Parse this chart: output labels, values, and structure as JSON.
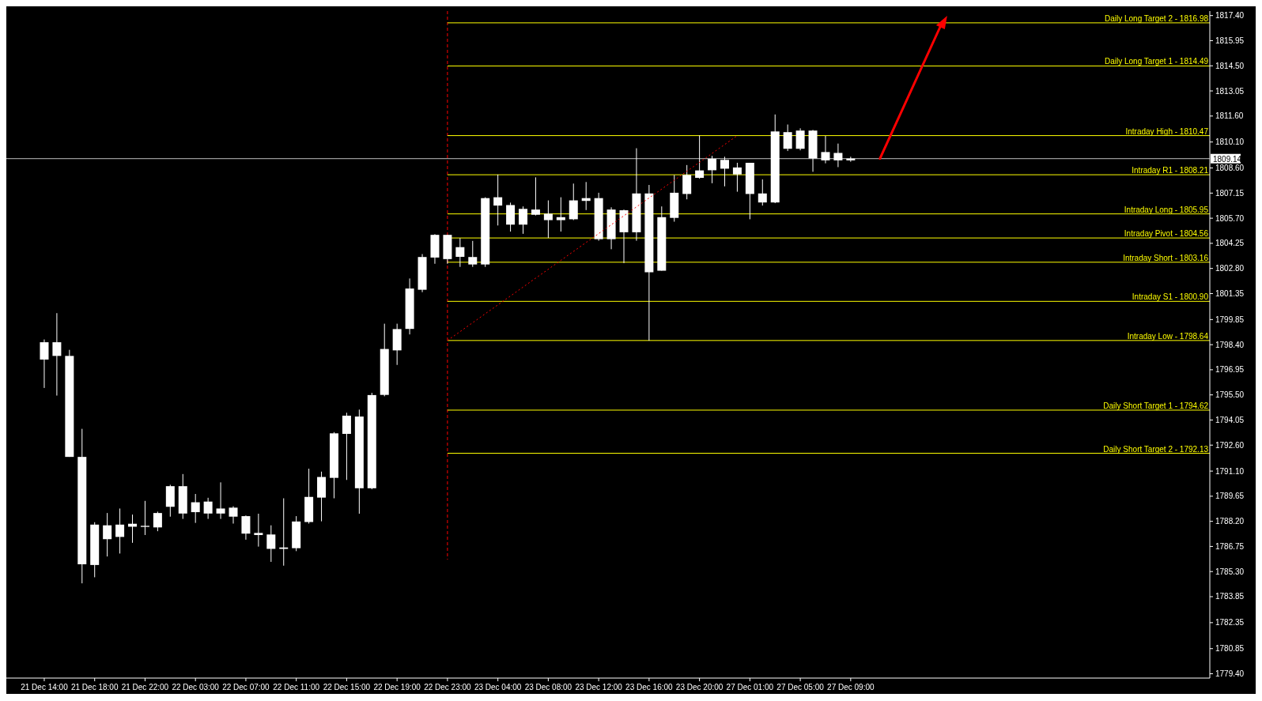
{
  "chart_data": {
    "type": "candlestick",
    "color": "#ffffff",
    "grid": false,
    "categories": [
      "21 Dec 14:00",
      null,
      null,
      null,
      "21 Dec 18:00",
      null,
      null,
      null,
      "21 Dec 22:00",
      null,
      null,
      null,
      "22 Dec 03:00",
      null,
      null,
      null,
      "22 Dec 07:00",
      null,
      null,
      null,
      "22 Dec 11:00",
      null,
      null,
      null,
      "22 Dec 15:00",
      null,
      null,
      null,
      "22 Dec 19:00",
      null,
      null,
      null,
      "22 Dec 23:00",
      null,
      null,
      null,
      "23 Dec 04:00",
      null,
      null,
      null,
      "23 Dec 08:00",
      null,
      null,
      null,
      "23 Dec 12:00",
      null,
      null,
      null,
      "23 Dec 16:00",
      null,
      null,
      null,
      "23 Dec 20:00",
      null,
      null,
      null,
      "27 Dec 01:00",
      null,
      null,
      null,
      "27 Dec 05:00",
      null,
      null,
      null,
      "27 Dec 09:00",
      null,
      null,
      null,
      null,
      null,
      null,
      null,
      null,
      null,
      null,
      null,
      null,
      null,
      null,
      null,
      null,
      null,
      null,
      null,
      null,
      null,
      null,
      null,
      null,
      null,
      null,
      null,
      null
    ],
    "ohlc": [
      [
        1797.54,
        1798.7,
        1795.9,
        1798.54
      ],
      [
        1798.54,
        1800.22,
        1795.46,
        1797.75
      ],
      [
        1797.75,
        1798.1,
        1791.92,
        1791.92
      ],
      [
        1791.92,
        1793.54,
        1784.62,
        1785.72
      ],
      [
        1785.68,
        1788.15,
        1784.97,
        1788.01
      ],
      [
        1787.97,
        1788.68,
        1786.17,
        1787.17
      ],
      [
        1787.3,
        1788.94,
        1786.34,
        1788.01
      ],
      [
        1787.89,
        1788.59,
        1786.96,
        1788.06
      ],
      [
        1787.94,
        1789.38,
        1787.41,
        1787.88
      ],
      [
        1787.85,
        1788.76,
        1787.63,
        1788.68
      ],
      [
        1789.04,
        1790.31,
        1788.47,
        1790.23
      ],
      [
        1790.23,
        1790.93,
        1788.34,
        1788.65
      ],
      [
        1788.73,
        1789.78,
        1788.11,
        1789.3
      ],
      [
        1789.34,
        1789.56,
        1788.34,
        1788.65
      ],
      [
        1788.65,
        1790.45,
        1788.34,
        1788.94
      ],
      [
        1788.99,
        1789.07,
        1788.07,
        1788.47
      ],
      [
        1788.5,
        1788.54,
        1787.14,
        1787.49
      ],
      [
        1787.53,
        1788.64,
        1786.74,
        1787.41
      ],
      [
        1787.44,
        1787.97,
        1785.86,
        1786.61
      ],
      [
        1786.61,
        1789.53,
        1785.64,
        1786.69
      ],
      [
        1786.65,
        1788.5,
        1786.48,
        1788.19
      ],
      [
        1788.16,
        1791.24,
        1788.07,
        1789.61
      ],
      [
        1789.57,
        1791.07,
        1788.2,
        1790.76
      ],
      [
        1790.71,
        1793.35,
        1789.53,
        1793.28
      ],
      [
        1793.25,
        1794.47,
        1790.59,
        1794.3
      ],
      [
        1794.25,
        1794.65,
        1788.64,
        1790.11
      ],
      [
        1790.11,
        1795.62,
        1790.05,
        1795.49
      ],
      [
        1795.5,
        1799.61,
        1795.42,
        1798.15
      ],
      [
        1798.07,
        1799.61,
        1797.23,
        1799.3
      ],
      [
        1799.31,
        1802.22,
        1798.99,
        1801.64
      ],
      [
        1801.57,
        1803.63,
        1801.43,
        1803.46
      ],
      [
        1803.43,
        1804.78,
        1803.07,
        1804.74
      ],
      [
        1804.74,
        1804.74,
        1803.07,
        1803.34
      ],
      [
        1804.03,
        1804.55,
        1802.89,
        1803.47
      ],
      [
        1803.46,
        1804.39,
        1802.89,
        1803.03
      ],
      [
        1803.03,
        1806.91,
        1802.89,
        1806.86
      ],
      [
        1806.91,
        1808.22,
        1805.28,
        1806.43
      ],
      [
        1806.46,
        1806.6,
        1804.93,
        1805.33
      ],
      [
        1805.33,
        1806.38,
        1804.8,
        1806.24
      ],
      [
        1806.2,
        1808.06,
        1805.86,
        1805.9
      ],
      [
        1805.96,
        1806.73,
        1804.56,
        1805.59
      ],
      [
        1805.59,
        1806.91,
        1804.93,
        1805.76
      ],
      [
        1805.64,
        1807.7,
        1805.59,
        1806.73
      ],
      [
        1806.7,
        1807.79,
        1806.17,
        1806.86
      ],
      [
        1806.86,
        1807.17,
        1804.4,
        1804.49
      ],
      [
        1804.49,
        1806.33,
        1803.91,
        1806.2
      ],
      [
        1806.16,
        1806.2,
        1803.11,
        1804.89
      ],
      [
        1804.89,
        1809.74,
        1804.4,
        1807.13
      ],
      [
        1807.13,
        1807.62,
        1798.63,
        1802.58
      ],
      [
        1802.67,
        1806.38,
        1802.67,
        1805.76
      ],
      [
        1805.72,
        1808.19,
        1805.5,
        1807.17
      ],
      [
        1807.1,
        1808.77,
        1806.79,
        1808.2
      ],
      [
        1808.03,
        1810.48,
        1807.98,
        1808.46
      ],
      [
        1808.47,
        1809.3,
        1807.72,
        1809.13
      ],
      [
        1809.07,
        1809.25,
        1807.54,
        1808.56
      ],
      [
        1808.63,
        1808.9,
        1807.23,
        1808.23
      ],
      [
        1808.9,
        1808.9,
        1805.64,
        1807.1
      ],
      [
        1807.13,
        1807.94,
        1806.43,
        1806.61
      ],
      [
        1806.61,
        1811.69,
        1806.57,
        1810.71
      ],
      [
        1810.67,
        1811.11,
        1809.58,
        1809.71
      ],
      [
        1809.71,
        1810.89,
        1809.62,
        1810.76
      ],
      [
        1810.76,
        1810.8,
        1808.38,
        1809.15
      ],
      [
        1809.04,
        1810.45,
        1808.87,
        1809.52
      ],
      [
        1809.47,
        1810.01,
        1808.65,
        1809.04
      ],
      [
        1809.04,
        1809.25,
        1808.96,
        1809.14
      ],
      null,
      null,
      null,
      null,
      null,
      null,
      null,
      null,
      null,
      null,
      null,
      null,
      null,
      null,
      null,
      null,
      null,
      null,
      null,
      null,
      null,
      null,
      null,
      null,
      null,
      null,
      null,
      null
    ],
    "series": [
      {
        "type": "line",
        "color": "#ff0000",
        "line_style": "dotted",
        "values": [
          null,
          null,
          null,
          null,
          null,
          null,
          null,
          null,
          null,
          null,
          null,
          null,
          null,
          null,
          null,
          null,
          null,
          null,
          null,
          null,
          null,
          null,
          null,
          null,
          null,
          null,
          null,
          null,
          null,
          null,
          null,
          null,
          1798.64,
          null,
          null,
          null,
          null,
          null,
          null,
          null,
          null,
          null,
          null,
          null,
          null,
          null,
          null,
          null,
          null,
          null,
          null,
          null,
          null,
          null,
          null,
          1810.47,
          null,
          null,
          null,
          null,
          null,
          null,
          null,
          null,
          null,
          null,
          null,
          null,
          null,
          null,
          null,
          null,
          null,
          null,
          null,
          null,
          null,
          null,
          null,
          null,
          null,
          null,
          null,
          null,
          null,
          null,
          null,
          null,
          null,
          null,
          null,
          null,
          null
        ]
      }
    ],
    "ylim": [
      1779.15,
      1817.66
    ],
    "yticks": [
      {
        "value": 1779.4,
        "label": "1779.40"
      },
      1780.85,
      1782.35,
      1783.85,
      {
        "value": 1785.3,
        "label": "1785.30"
      },
      1786.75,
      {
        "value": 1788.2,
        "label": "1788.20"
      },
      1789.65,
      {
        "value": 1791.1,
        "label": "1791.10"
      },
      {
        "value": 1792.6,
        "label": "1792.60"
      },
      1794.05,
      {
        "value": 1795.5,
        "label": "1795.50"
      },
      1796.95,
      {
        "value": 1798.4,
        "label": "1798.40"
      },
      1799.85,
      1801.35,
      {
        "value": 1802.8,
        "label": "1802.80"
      },
      1804.25,
      {
        "value": 1805.7,
        "label": "1805.70"
      },
      1807.15,
      {
        "value": 1808.6,
        "label": "1808.60"
      },
      {
        "value": 1810.1,
        "label": "1810.10"
      },
      {
        "value": 1811.6,
        "label": "1811.60"
      },
      1813.05,
      {
        "value": 1814.5,
        "label": "1814.50"
      },
      1815.95,
      {
        "value": 1817.4,
        "label": "1817.40"
      }
    ],
    "ref_lines": [
      {
        "axis": "y",
        "value": 1816.98,
        "label": "Daily Long Target 2 -  1816.98",
        "color": "#ffff00"
      },
      {
        "axis": "y",
        "value": 1814.49,
        "label": "Daily Long Target 1 -  1814.49",
        "color": "#ffff00"
      },
      {
        "axis": "y",
        "value": 1810.47,
        "label": "Intraday High -  1810.47",
        "color": "#ffff00"
      },
      {
        "axis": "y",
        "value": 1808.21,
        "label": "Intraday R1 -  1808.21",
        "color": "#ffff00"
      },
      {
        "axis": "y",
        "value": 1805.95,
        "label": "Intraday Long -  1805.95",
        "color": "#ffff00"
      },
      {
        "axis": "y",
        "value": 1804.56,
        "label": "Intraday Pivot -  1804.56",
        "color": "#ffff00"
      },
      {
        "axis": "y",
        "value": 1803.16,
        "label": "Intraday Short -  1803.16",
        "color": "#ffff00"
      },
      {
        "axis": "y",
        "value": 1800.9,
        "label": "Intraday S1 -  1800.90",
        "color": "#ffff00"
      },
      {
        "axis": "y",
        "value": 1798.64,
        "label": "Intraday Low -  1798.64",
        "color": "#ffff00"
      },
      {
        "axis": "y",
        "value": 1794.62,
        "label": "Daily Short Target 1 -  1794.62",
        "color": "#ffff00"
      },
      {
        "axis": "y",
        "value": 1792.13,
        "label": "Daily Short Target 2 -  1792.13",
        "color": "#ffff00"
      },
      {
        "axis": "y",
        "value": 1809.14,
        "label": "1809.14",
        "color": "#c0c0c0"
      }
    ]
  }
}
